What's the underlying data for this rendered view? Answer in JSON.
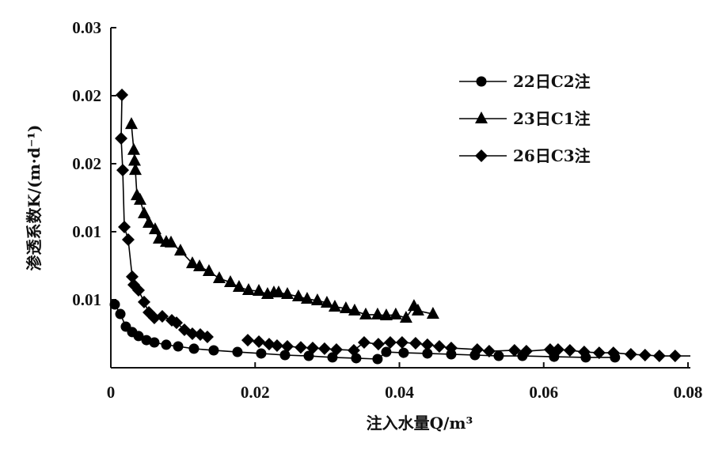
{
  "chart_data": {
    "type": "line",
    "title": "",
    "xlabel": "注入水量Q/m³",
    "ylabel": "渗透系数K/(m·d⁻¹)",
    "xlim": [
      0,
      0.08
    ],
    "ylim": [
      0,
      0.025
    ],
    "grid": false,
    "legend_position": "top-right",
    "x_ticks": [
      0,
      0.02,
      0.04,
      0.06,
      0.08
    ],
    "x_tick_labels": [
      "0",
      "0.02",
      "0.04",
      "0.06",
      "0.08"
    ],
    "y_ticks": [
      0.005,
      0.01,
      0.015,
      0.02,
      0.025
    ],
    "y_tick_labels": [
      "0.01",
      "0.01",
      "0.02",
      "0.02",
      "0.03"
    ],
    "series": [
      {
        "name": "22日C2注",
        "marker": "circle",
        "x": [
          0.00055,
          0.00132,
          0.00208,
          0.00296,
          0.00384,
          0.00494,
          0.00603,
          0.00768,
          0.00933,
          0.01152,
          0.01426,
          0.01755,
          0.02084,
          0.02414,
          0.02743,
          0.03072,
          0.03401,
          0.03697,
          0.03818,
          0.04059,
          0.04388,
          0.04718,
          0.05047,
          0.05376,
          0.05705,
          0.06144,
          0.06583,
          0.06988
        ],
        "y": [
          0.00465,
          0.00395,
          0.00302,
          0.00262,
          0.00233,
          0.00203,
          0.00186,
          0.00169,
          0.00157,
          0.0014,
          0.00128,
          0.00116,
          0.00105,
          0.00093,
          0.00087,
          0.00076,
          0.0007,
          0.00064,
          0.00116,
          0.0011,
          0.00105,
          0.00099,
          0.00093,
          0.00087,
          0.00087,
          0.00081,
          0.00076,
          0.00076
        ]
      },
      {
        "name": "23日C1注",
        "marker": "triangle",
        "x": [
          0.00285,
          0.00318,
          0.00329,
          0.0034,
          0.00362,
          0.00406,
          0.00461,
          0.00527,
          0.00614,
          0.00669,
          0.00768,
          0.00834,
          0.00965,
          0.0113,
          0.01229,
          0.0136,
          0.01503,
          0.01657,
          0.01777,
          0.01909,
          0.02052,
          0.02172,
          0.0226,
          0.02326,
          0.02447,
          0.026,
          0.02721,
          0.02863,
          0.02995,
          0.03105,
          0.03258,
          0.03379,
          0.03533,
          0.03697,
          0.03818,
          0.03949,
          0.04092,
          0.04202,
          0.04257,
          0.04465
        ],
        "y": [
          0.0179,
          0.016,
          0.0152,
          0.01453,
          0.01267,
          0.01233,
          0.01134,
          0.01064,
          0.01017,
          0.00948,
          0.00924,
          0.00919,
          0.0086,
          0.00767,
          0.00744,
          0.00709,
          0.00657,
          0.00628,
          0.00593,
          0.0057,
          0.00564,
          0.00541,
          0.00552,
          0.00552,
          0.00541,
          0.00523,
          0.00506,
          0.00494,
          0.00477,
          0.00448,
          0.00436,
          0.00419,
          0.0039,
          0.0039,
          0.00384,
          0.0039,
          0.00366,
          0.00453,
          0.00419,
          0.00395
        ]
      },
      {
        "name": "26日C3注",
        "marker": "diamond",
        "x": [
          0.00154,
          0.00143,
          0.00165,
          0.00187,
          0.00241,
          0.00296,
          0.00318,
          0.00384,
          0.00461,
          0.00527,
          0.00603,
          0.00713,
          0.00845,
          0.00911,
          0.0102,
          0.0113,
          0.0124,
          0.01338,
          null,
          0.01898,
          0.02052,
          0.02194,
          0.02304,
          0.02447,
          0.02633,
          0.02798,
          0.02962,
          0.03127,
          0.03368,
          0.03511,
          0.03708,
          0.03873,
          0.04037,
          0.04224,
          0.04388,
          0.04553,
          0.04718,
          0.05079,
          0.05244,
          0.05595,
          0.0576,
          0.06089,
          0.06199,
          0.06363,
          0.06561,
          0.06769,
          0.06966,
          0.07208,
          0.07405,
          0.07603,
          0.07822
        ],
        "y": [
          0.02006,
          0.01686,
          0.01453,
          0.01035,
          0.00942,
          0.00669,
          0.0061,
          0.0057,
          0.00483,
          0.00407,
          0.00366,
          0.00378,
          0.00349,
          0.00331,
          0.00279,
          0.0025,
          0.00244,
          0.00227,
          null,
          0.00203,
          0.00192,
          0.00174,
          0.00163,
          0.00157,
          0.0015,
          0.00145,
          0.0014,
          0.00134,
          0.00128,
          0.00186,
          0.00174,
          0.00186,
          0.00186,
          0.0018,
          0.00169,
          0.00157,
          0.00145,
          0.00134,
          0.00122,
          0.00128,
          0.00122,
          0.00134,
          0.00134,
          0.00128,
          0.00116,
          0.0011,
          0.0011,
          0.00099,
          0.00093,
          0.00087,
          0.00087
        ]
      }
    ]
  }
}
